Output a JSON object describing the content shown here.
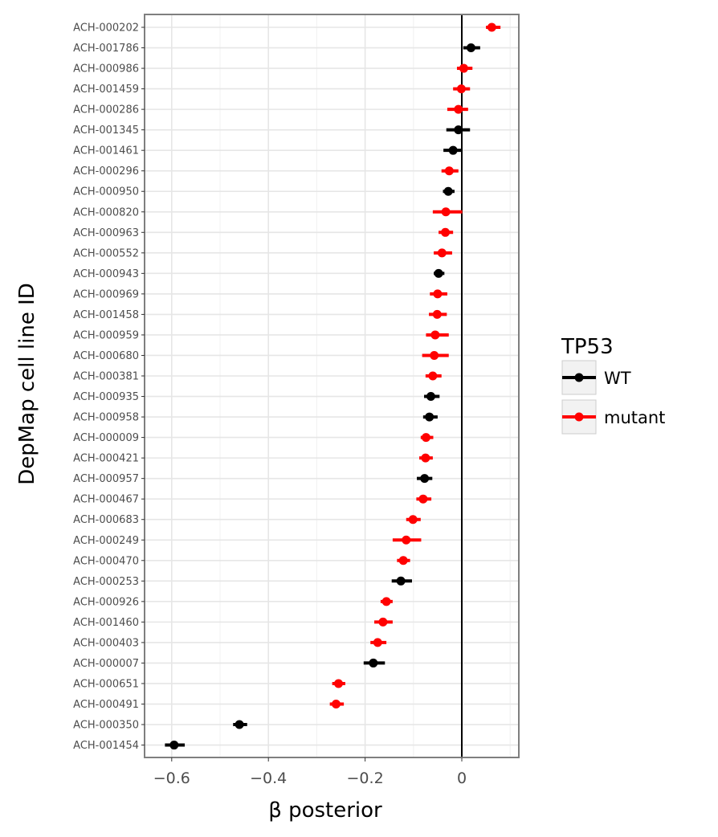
{
  "chart_data": {
    "type": "scatter",
    "subtype": "point-range (dot with horizontal error interval)",
    "title": "",
    "xlabel": "β posterior",
    "ylabel": "DepMap cell line ID",
    "xlim": [
      -0.65,
      0.12
    ],
    "x_ticks": [
      -0.6,
      -0.4,
      -0.2,
      0
    ],
    "x_tick_labels": [
      "−0.6",
      "−0.4",
      "−0.2",
      "0"
    ],
    "reference_line_x": 0,
    "grid": true,
    "legend": {
      "title": "TP53",
      "placement": "right",
      "entries": [
        {
          "label": "WT",
          "color": "#000000"
        },
        {
          "label": "mutant",
          "color": "#ff0000"
        }
      ]
    },
    "categories": [
      "ACH-000202",
      "ACH-001786",
      "ACH-000986",
      "ACH-001459",
      "ACH-000286",
      "ACH-001345",
      "ACH-001461",
      "ACH-000296",
      "ACH-000950",
      "ACH-000820",
      "ACH-000963",
      "ACH-000552",
      "ACH-000943",
      "ACH-000969",
      "ACH-001458",
      "ACH-000959",
      "ACH-000680",
      "ACH-000381",
      "ACH-000935",
      "ACH-000958",
      "ACH-000009",
      "ACH-000421",
      "ACH-000957",
      "ACH-000467",
      "ACH-000683",
      "ACH-000249",
      "ACH-000470",
      "ACH-000253",
      "ACH-000926",
      "ACH-001460",
      "ACH-000403",
      "ACH-000007",
      "ACH-000651",
      "ACH-000491",
      "ACH-000350",
      "ACH-001454"
    ],
    "series": [
      {
        "group": "mutant",
        "cell_line": "ACH-000202",
        "x": 0.062,
        "low": 0.05,
        "high": 0.08
      },
      {
        "group": "WT",
        "cell_line": "ACH-001786",
        "x": 0.019,
        "low": 0.003,
        "high": 0.038
      },
      {
        "group": "mutant",
        "cell_line": "ACH-000986",
        "x": 0.004,
        "low": -0.01,
        "high": 0.022
      },
      {
        "group": "mutant",
        "cell_line": "ACH-001459",
        "x": -0.001,
        "low": -0.018,
        "high": 0.017
      },
      {
        "group": "mutant",
        "cell_line": "ACH-000286",
        "x": -0.007,
        "low": -0.03,
        "high": 0.013
      },
      {
        "group": "WT",
        "cell_line": "ACH-001345",
        "x": -0.007,
        "low": -0.032,
        "high": 0.017
      },
      {
        "group": "WT",
        "cell_line": "ACH-001461",
        "x": -0.018,
        "low": -0.038,
        "high": 0.001
      },
      {
        "group": "mutant",
        "cell_line": "ACH-000296",
        "x": -0.026,
        "low": -0.042,
        "high": -0.007
      },
      {
        "group": "WT",
        "cell_line": "ACH-000950",
        "x": -0.028,
        "low": -0.039,
        "high": -0.015
      },
      {
        "group": "mutant",
        "cell_line": "ACH-000820",
        "x": -0.033,
        "low": -0.06,
        "high": 0.001
      },
      {
        "group": "mutant",
        "cell_line": "ACH-000963",
        "x": -0.034,
        "low": -0.048,
        "high": -0.018
      },
      {
        "group": "mutant",
        "cell_line": "ACH-000552",
        "x": -0.041,
        "low": -0.058,
        "high": -0.02
      },
      {
        "group": "WT",
        "cell_line": "ACH-000943",
        "x": -0.048,
        "low": -0.058,
        "high": -0.036
      },
      {
        "group": "mutant",
        "cell_line": "ACH-000969",
        "x": -0.05,
        "low": -0.066,
        "high": -0.03
      },
      {
        "group": "mutant",
        "cell_line": "ACH-001458",
        "x": -0.051,
        "low": -0.068,
        "high": -0.031
      },
      {
        "group": "mutant",
        "cell_line": "ACH-000959",
        "x": -0.055,
        "low": -0.074,
        "high": -0.027
      },
      {
        "group": "mutant",
        "cell_line": "ACH-000680",
        "x": -0.057,
        "low": -0.082,
        "high": -0.027
      },
      {
        "group": "mutant",
        "cell_line": "ACH-000381",
        "x": -0.06,
        "low": -0.075,
        "high": -0.042
      },
      {
        "group": "WT",
        "cell_line": "ACH-000935",
        "x": -0.064,
        "low": -0.078,
        "high": -0.046
      },
      {
        "group": "WT",
        "cell_line": "ACH-000958",
        "x": -0.067,
        "low": -0.08,
        "high": -0.05
      },
      {
        "group": "mutant",
        "cell_line": "ACH-000009",
        "x": -0.074,
        "low": -0.085,
        "high": -0.059
      },
      {
        "group": "mutant",
        "cell_line": "ACH-000421",
        "x": -0.075,
        "low": -0.088,
        "high": -0.06
      },
      {
        "group": "WT",
        "cell_line": "ACH-000957",
        "x": -0.077,
        "low": -0.093,
        "high": -0.061
      },
      {
        "group": "mutant",
        "cell_line": "ACH-000467",
        "x": -0.08,
        "low": -0.094,
        "high": -0.063
      },
      {
        "group": "mutant",
        "cell_line": "ACH-000683",
        "x": -0.101,
        "low": -0.115,
        "high": -0.085
      },
      {
        "group": "mutant",
        "cell_line": "ACH-000249",
        "x": -0.115,
        "low": -0.143,
        "high": -0.084
      },
      {
        "group": "mutant",
        "cell_line": "ACH-000470",
        "x": -0.121,
        "low": -0.134,
        "high": -0.107
      },
      {
        "group": "WT",
        "cell_line": "ACH-000253",
        "x": -0.126,
        "low": -0.145,
        "high": -0.103
      },
      {
        "group": "mutant",
        "cell_line": "ACH-000926",
        "x": -0.156,
        "low": -0.168,
        "high": -0.143
      },
      {
        "group": "mutant",
        "cell_line": "ACH-001460",
        "x": -0.163,
        "low": -0.181,
        "high": -0.143
      },
      {
        "group": "mutant",
        "cell_line": "ACH-000403",
        "x": -0.174,
        "low": -0.189,
        "high": -0.156
      },
      {
        "group": "WT",
        "cell_line": "ACH-000007",
        "x": -0.183,
        "low": -0.203,
        "high": -0.159
      },
      {
        "group": "mutant",
        "cell_line": "ACH-000651",
        "x": -0.255,
        "low": -0.268,
        "high": -0.241
      },
      {
        "group": "mutant",
        "cell_line": "ACH-000491",
        "x": -0.26,
        "low": -0.273,
        "high": -0.244
      },
      {
        "group": "WT",
        "cell_line": "ACH-000350",
        "x": -0.46,
        "low": -0.473,
        "high": -0.444
      },
      {
        "group": "WT",
        "cell_line": "ACH-001454",
        "x": -0.595,
        "low": -0.614,
        "high": -0.573
      }
    ]
  }
}
